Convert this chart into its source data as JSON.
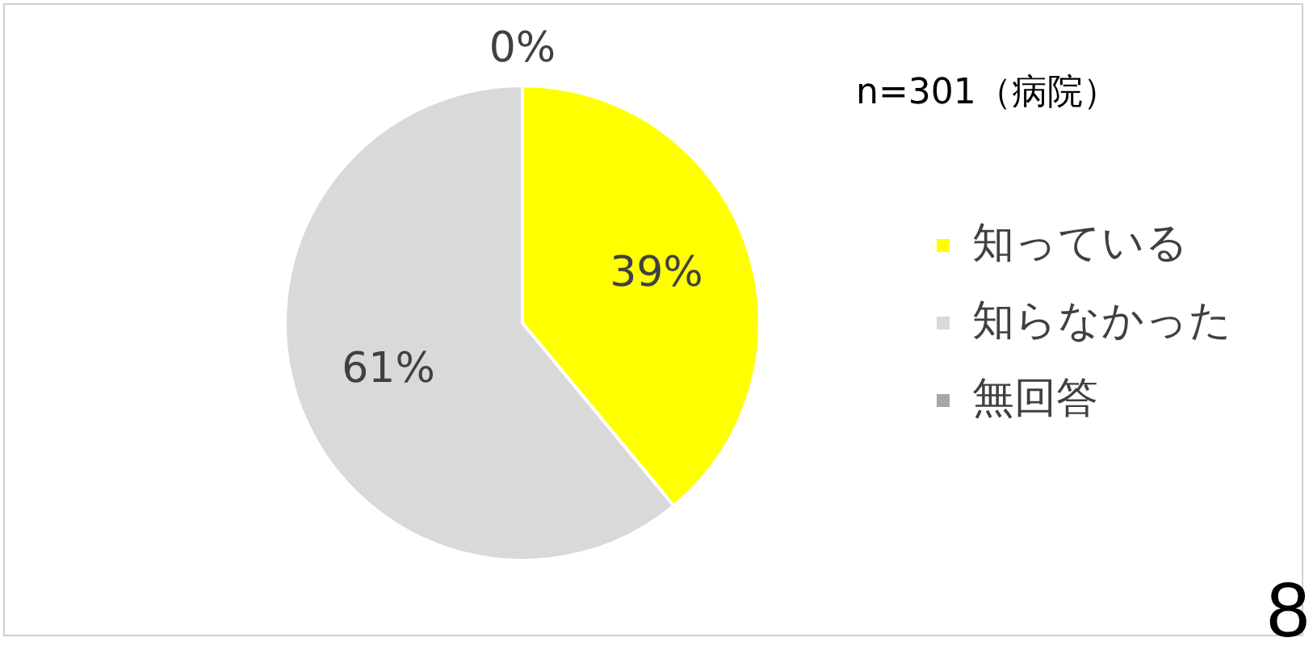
{
  "chart_data": {
    "type": "pie",
    "title": "n=301（病院）",
    "categories": [
      "知っている",
      "知らなかった",
      "無回答"
    ],
    "values": [
      39,
      61,
      0
    ],
    "colors": [
      "#ffff00",
      "#d9d9d9",
      "#a6a6a6"
    ],
    "value_labels": [
      "39%",
      "61%",
      "0%"
    ],
    "legend": "right",
    "annotations": [
      "8"
    ]
  }
}
